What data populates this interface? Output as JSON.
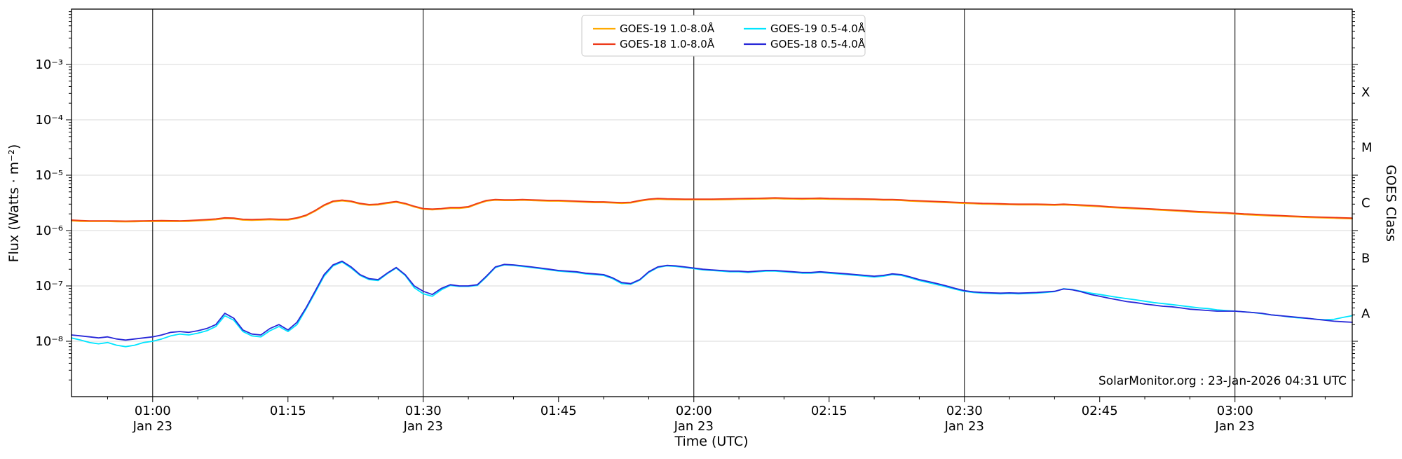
{
  "page": {
    "background": "#ffffff"
  },
  "chart_data": {
    "type": "line",
    "title": "",
    "xlabel": "Time (UTC)",
    "ylabel": "Flux (Watts · m⁻²)",
    "ylabel_right": "GOES Class",
    "watermark": "SolarMonitor.org : 23-Jan-2026 04:31 UTC",
    "grid": {
      "vertical_lines_at_half_hours": true,
      "decade_gridlines": true
    },
    "legend_position": "top-center",
    "x_axis": {
      "t_min": 51,
      "t_max": 193,
      "t_step": 1,
      "unit": "minutes after 00:00 UTC",
      "minor_tick_step": 5,
      "major_ticks": [
        {
          "t": 60,
          "label": "01:00",
          "sub": "Jan 23"
        },
        {
          "t": 75,
          "label": "01:15"
        },
        {
          "t": 90,
          "label": "01:30",
          "sub": "Jan 23"
        },
        {
          "t": 105,
          "label": "01:45"
        },
        {
          "t": 120,
          "label": "02:00",
          "sub": "Jan 23"
        },
        {
          "t": 135,
          "label": "02:15"
        },
        {
          "t": 150,
          "label": "02:30",
          "sub": "Jan 23"
        },
        {
          "t": 165,
          "label": "02:45"
        },
        {
          "t": 180,
          "label": "03:00",
          "sub": "Jan 23"
        }
      ]
    },
    "y_axis": {
      "scale": "log",
      "log_min": -9,
      "log_max": -2,
      "major_ticks": [
        {
          "exp": -3,
          "label": "10⁻³"
        },
        {
          "exp": -4,
          "label": "10⁻⁴"
        },
        {
          "exp": -5,
          "label": "10⁻⁵"
        },
        {
          "exp": -6,
          "label": "10⁻⁶"
        },
        {
          "exp": -7,
          "label": "10⁻⁷"
        },
        {
          "exp": -8,
          "label": "10⁻⁸"
        }
      ]
    },
    "goes_class_labels": [
      {
        "label": "X",
        "log": -3.5
      },
      {
        "label": "M",
        "log": -4.5
      },
      {
        "label": "C",
        "log": -5.5
      },
      {
        "label": "B",
        "log": -6.5
      },
      {
        "label": "A",
        "log": -7.5
      }
    ],
    "series": [
      {
        "id": "goes19-long",
        "name": "GOES-19 1.0-8.0Å",
        "color": "#ffaa00",
        "scale": 1e-06,
        "values": [
          1.5,
          1.47,
          1.46,
          1.46,
          1.46,
          1.45,
          1.44,
          1.45,
          1.46,
          1.46,
          1.47,
          1.46,
          1.46,
          1.47,
          1.5,
          1.53,
          1.57,
          1.65,
          1.63,
          1.55,
          1.53,
          1.55,
          1.57,
          1.55,
          1.55,
          1.65,
          1.84,
          2.23,
          2.81,
          3.3,
          3.44,
          3.3,
          3.01,
          2.86,
          2.91,
          3.1,
          3.25,
          3.01,
          2.67,
          2.43,
          2.38,
          2.43,
          2.52,
          2.52,
          2.62,
          3.01,
          3.4,
          3.54,
          3.49,
          3.49,
          3.54,
          3.49,
          3.44,
          3.4,
          3.4,
          3.35,
          3.3,
          3.25,
          3.2,
          3.2,
          3.15,
          3.1,
          3.15,
          3.4,
          3.59,
          3.69,
          3.64,
          3.61,
          3.59,
          3.59,
          3.59,
          3.59,
          3.61,
          3.64,
          3.67,
          3.69,
          3.71,
          3.73,
          3.78,
          3.73,
          3.71,
          3.69,
          3.71,
          3.73,
          3.69,
          3.67,
          3.65,
          3.64,
          3.61,
          3.59,
          3.54,
          3.54,
          3.49,
          3.4,
          3.35,
          3.3,
          3.25,
          3.2,
          3.15,
          3.1,
          3.06,
          3.01,
          2.99,
          2.96,
          2.93,
          2.91,
          2.91,
          2.91,
          2.89,
          2.86,
          2.91,
          2.86,
          2.81,
          2.76,
          2.7,
          2.62,
          2.57,
          2.52,
          2.47,
          2.43,
          2.38,
          2.33,
          2.28,
          2.23,
          2.18,
          2.13,
          2.1,
          2.07,
          2.04,
          1.99,
          1.94,
          1.91,
          1.87,
          1.84,
          1.81,
          1.78,
          1.76,
          1.73,
          1.71,
          1.69,
          1.67,
          1.65,
          1.63
        ]
      },
      {
        "id": "goes18-long",
        "name": "GOES-18 1.0-8.0Å",
        "color": "#ed3a1a",
        "scale": 1e-06,
        "values": [
          1.55,
          1.52,
          1.5,
          1.5,
          1.5,
          1.49,
          1.48,
          1.49,
          1.5,
          1.51,
          1.52,
          1.51,
          1.5,
          1.52,
          1.55,
          1.58,
          1.62,
          1.7,
          1.68,
          1.6,
          1.58,
          1.6,
          1.62,
          1.6,
          1.6,
          1.7,
          1.9,
          2.3,
          2.9,
          3.4,
          3.55,
          3.4,
          3.1,
          2.95,
          3.0,
          3.2,
          3.35,
          3.1,
          2.75,
          2.5,
          2.45,
          2.5,
          2.6,
          2.6,
          2.7,
          3.1,
          3.5,
          3.65,
          3.6,
          3.6,
          3.65,
          3.6,
          3.55,
          3.5,
          3.5,
          3.45,
          3.4,
          3.35,
          3.3,
          3.3,
          3.25,
          3.2,
          3.25,
          3.5,
          3.7,
          3.8,
          3.75,
          3.72,
          3.7,
          3.7,
          3.7,
          3.7,
          3.72,
          3.75,
          3.78,
          3.8,
          3.82,
          3.85,
          3.9,
          3.85,
          3.82,
          3.8,
          3.82,
          3.85,
          3.8,
          3.78,
          3.76,
          3.75,
          3.72,
          3.7,
          3.65,
          3.65,
          3.6,
          3.5,
          3.45,
          3.4,
          3.35,
          3.3,
          3.25,
          3.2,
          3.15,
          3.1,
          3.08,
          3.05,
          3.02,
          3.0,
          3.0,
          3.0,
          2.98,
          2.95,
          3.0,
          2.95,
          2.9,
          2.85,
          2.78,
          2.7,
          2.65,
          2.6,
          2.55,
          2.5,
          2.45,
          2.4,
          2.35,
          2.3,
          2.25,
          2.2,
          2.17,
          2.13,
          2.1,
          2.05,
          2.0,
          1.97,
          1.93,
          1.9,
          1.87,
          1.84,
          1.81,
          1.78,
          1.76,
          1.74,
          1.72,
          1.7,
          1.68
        ]
      },
      {
        "id": "goes19-short",
        "name": "GOES-19 0.5-4.0Å",
        "color": "#00e5ff",
        "scale": 1e-08,
        "values": [
          1.15,
          1.05,
          0.95,
          0.9,
          0.95,
          0.85,
          0.8,
          0.85,
          0.95,
          1.0,
          1.1,
          1.25,
          1.35,
          1.3,
          1.4,
          1.55,
          1.85,
          2.9,
          2.4,
          1.5,
          1.25,
          1.2,
          1.55,
          1.85,
          1.5,
          2.0,
          3.8,
          7.5,
          15,
          23,
          27,
          21,
          15.5,
          13,
          12.5,
          16.5,
          21,
          15.5,
          9.3,
          7.2,
          6.5,
          8.5,
          10.2,
          9.8,
          9.8,
          10.2,
          14.5,
          21.5,
          24,
          23.5,
          22.5,
          21.5,
          20.5,
          19.5,
          18.5,
          18,
          17.5,
          16.5,
          16,
          15.5,
          13.5,
          11,
          10.7,
          12.7,
          17.5,
          21.5,
          23,
          22.5,
          21.5,
          20.5,
          19.5,
          19,
          18.5,
          18,
          18,
          17.5,
          18,
          18.5,
          18.5,
          18,
          17.5,
          17,
          17,
          17.5,
          17,
          16.5,
          16,
          15.5,
          15,
          14.5,
          15,
          16,
          15.5,
          14,
          12.5,
          11.5,
          10.5,
          9.6,
          8.7,
          8.0,
          7.6,
          7.4,
          7.3,
          7.2,
          7.3,
          7.2,
          7.3,
          7.4,
          7.6,
          7.9,
          8.9,
          8.6,
          8.0,
          7.4,
          7.0,
          6.6,
          6.2,
          5.9,
          5.6,
          5.3,
          5.0,
          4.8,
          4.6,
          4.4,
          4.2,
          4.0,
          3.9,
          3.7,
          3.6,
          3.5,
          3.4,
          3.3,
          3.15,
          3.0,
          2.9,
          2.75,
          2.65,
          2.6,
          2.5,
          2.45,
          2.5,
          2.7,
          2.9
        ]
      },
      {
        "id": "goes18-short",
        "name": "GOES-18 0.5-4.0Å",
        "color": "#2828d8",
        "scale": 1e-08,
        "values": [
          1.3,
          1.25,
          1.2,
          1.15,
          1.2,
          1.1,
          1.05,
          1.1,
          1.15,
          1.2,
          1.3,
          1.45,
          1.5,
          1.45,
          1.55,
          1.7,
          2.0,
          3.2,
          2.6,
          1.6,
          1.35,
          1.3,
          1.7,
          2.0,
          1.6,
          2.2,
          4.0,
          8.0,
          16,
          24,
          28,
          22,
          16,
          13.5,
          13,
          17,
          21.5,
          16,
          10,
          8.0,
          7.0,
          9.0,
          10.5,
          10,
          10,
          10.5,
          15,
          22,
          24.5,
          24,
          23,
          22,
          21,
          20,
          19,
          18.5,
          18,
          17,
          16.5,
          16,
          14,
          11.5,
          11,
          13,
          18,
          22,
          23.5,
          23,
          22,
          21,
          20,
          19.5,
          19,
          18.5,
          18.5,
          18,
          18.5,
          19,
          19,
          18.5,
          18,
          17.5,
          17.5,
          18,
          17.5,
          17,
          16.5,
          16,
          15.5,
          15,
          15.5,
          16.5,
          16,
          14.5,
          13,
          12,
          11,
          10,
          9.0,
          8.2,
          7.8,
          7.6,
          7.5,
          7.4,
          7.5,
          7.4,
          7.5,
          7.6,
          7.8,
          8.0,
          8.8,
          8.5,
          7.8,
          7.0,
          6.5,
          6.0,
          5.6,
          5.2,
          5.0,
          4.7,
          4.5,
          4.3,
          4.2,
          4.0,
          3.8,
          3.7,
          3.6,
          3.5,
          3.5,
          3.5,
          3.4,
          3.3,
          3.2,
          3.0,
          2.9,
          2.8,
          2.7,
          2.6,
          2.5,
          2.4,
          2.3,
          2.25,
          2.2
        ]
      }
    ]
  }
}
